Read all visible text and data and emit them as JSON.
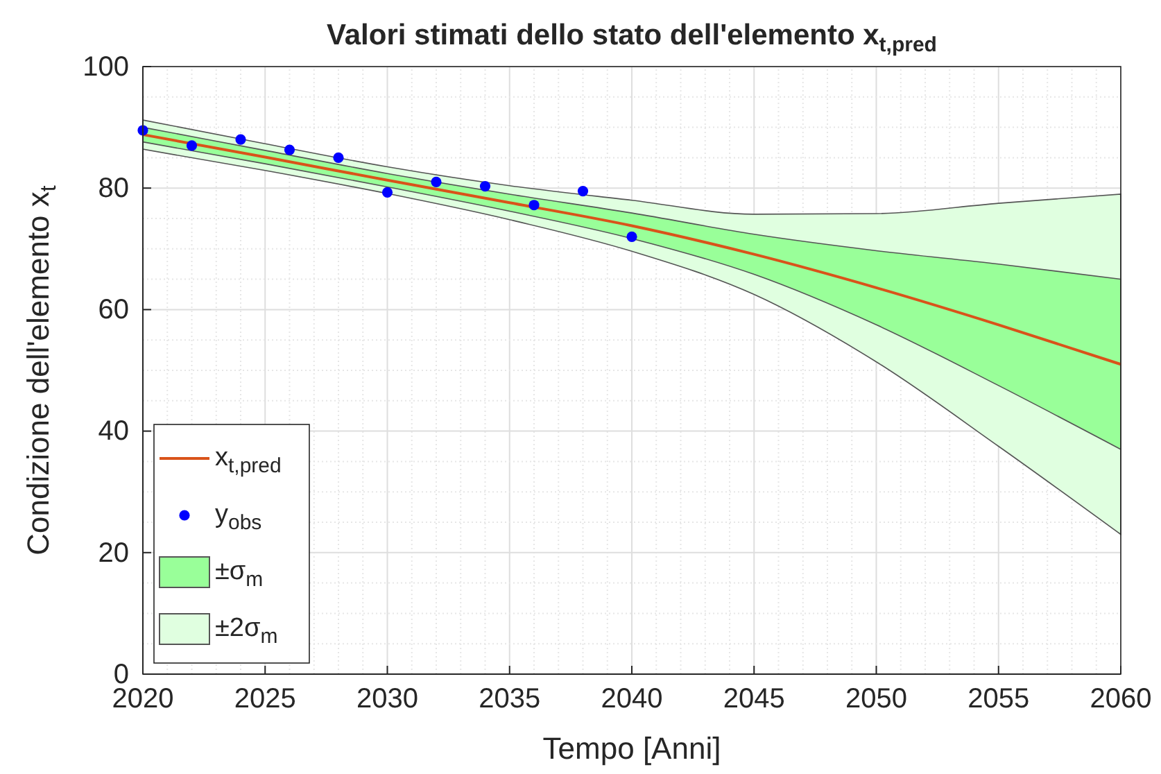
{
  "chart_data": {
    "type": "line",
    "title": "Valori stimati dello stato dell'elemento x$_{t,pred}$",
    "xlabel": "Tempo [Anni]",
    "ylabel": "Condizione dell'elemento x$_{t}$",
    "xlim": [
      2020,
      2060
    ],
    "xticks": [
      2020,
      2025,
      2030,
      2035,
      2040,
      2045,
      2050,
      2055,
      2060
    ],
    "ylim": [
      0,
      100
    ],
    "yticks": [
      0,
      20,
      40,
      60,
      80,
      100
    ],
    "grid": true,
    "legend": "bottom left",
    "series": [
      {
        "name": "x$_{t,pred}$",
        "color": "#d9531a",
        "x": [
          2020,
          2025,
          2030,
          2035,
          2040,
          2045,
          2050,
          2055,
          2060
        ],
        "values": [
          88.8,
          85.1,
          81.3,
          77.6,
          73.8,
          69.1,
          63.6,
          57.5,
          51.0
        ]
      },
      {
        "name": "y$_{obs}$",
        "type": "scatter",
        "color": "#0000ff",
        "marker": "circle",
        "x": [
          2020,
          2022,
          2024,
          2026,
          2028,
          2030,
          2032,
          2034,
          2036,
          2038,
          2040
        ],
        "values": [
          89.5,
          87.0,
          88.0,
          86.3,
          85.0,
          79.3,
          81.0,
          80.3,
          77.2,
          79.5,
          72.0
        ]
      },
      {
        "name": "±σ$_{m}$",
        "type": "line",
        "color": "#99ff99",
        "x": [
          2020,
          2025,
          2030,
          2035,
          2040,
          2045,
          2050,
          2055,
          2060
        ],
        "values": [
          null,
          null,
          null,
          null,
          null,
          null,
          null,
          null,
          null
        ],
        "lower": [
          87.6,
          84.0,
          80.2,
          76.2,
          71.7,
          65.8,
          57.5,
          47.5,
          37.0
        ],
        "upper": [
          90.0,
          86.2,
          82.4,
          79.0,
          75.9,
          72.4,
          69.7,
          67.5,
          65.0
        ]
      },
      {
        "name": "±2σ$_{m}$",
        "type": "line",
        "color": "#e0ffe0",
        "x": [
          2020,
          2025,
          2030,
          2035,
          2040,
          2045,
          2050,
          2055,
          2060
        ],
        "values": [
          null,
          null,
          null,
          null,
          null,
          null,
          null,
          null,
          null
        ],
        "lower": [
          86.4,
          82.9,
          79.1,
          74.8,
          69.6,
          62.5,
          51.4,
          37.5,
          23.0
        ],
        "upper": [
          91.2,
          87.3,
          83.5,
          80.4,
          78.0,
          75.7,
          75.8,
          77.5,
          79.0
        ]
      }
    ]
  }
}
